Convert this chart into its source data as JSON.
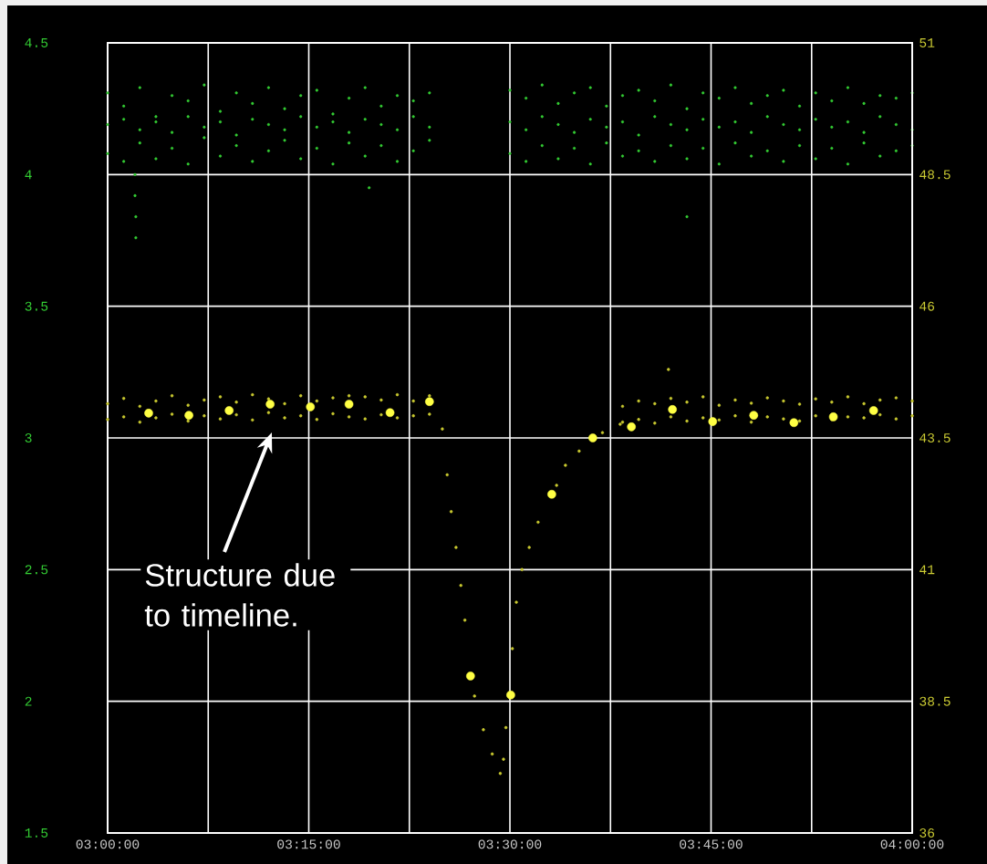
{
  "chart_data": {
    "type": "scatter",
    "grid": true,
    "xlim": [
      3,
      4
    ],
    "xticks": [
      {
        "value": 3,
        "label": "03:00:00"
      },
      {
        "value": 3.125,
        "label": null
      },
      {
        "value": 3.25,
        "label": "03:15:00"
      },
      {
        "value": 3.375,
        "label": null
      },
      {
        "value": 3.5,
        "label": "03:30:00"
      },
      {
        "value": 3.625,
        "label": null
      },
      {
        "value": 3.75,
        "label": "03:45:00"
      },
      {
        "value": 3.875,
        "label": null
      },
      {
        "value": 4,
        "label": "04:00:00"
      }
    ],
    "ylim": [
      1.5,
      4.5
    ],
    "yticks": [
      1.5,
      2,
      2.5,
      3,
      3.5,
      4,
      4.5
    ],
    "y2lim": [
      36,
      51
    ],
    "y2ticks": [
      36,
      38.5,
      41,
      43.5,
      46,
      48.5,
      51
    ],
    "annotations": [
      "Structure due to timeline."
    ],
    "series": [
      {
        "color": "#33cc33",
        "x": [
          3.0,
          3.0,
          3.0,
          3.02,
          3.02,
          3.02,
          3.04,
          3.04,
          3.04,
          3.06,
          3.06,
          3.06,
          3.08,
          3.08,
          3.08,
          3.1,
          3.1,
          3.1,
          3.12,
          3.12,
          3.12,
          3.14,
          3.14,
          3.14,
          3.16,
          3.16,
          3.16,
          3.18,
          3.18,
          3.18,
          3.2,
          3.2,
          3.2,
          3.22,
          3.22,
          3.22,
          3.24,
          3.24,
          3.24,
          3.26,
          3.26,
          3.26,
          3.28,
          3.28,
          3.28,
          3.3,
          3.3,
          3.3,
          3.32,
          3.32,
          3.32,
          3.34,
          3.34,
          3.34,
          3.36,
          3.36,
          3.36,
          3.38,
          3.38,
          3.38,
          3.4,
          3.4,
          3.4,
          3.5,
          3.5,
          3.5,
          3.52,
          3.52,
          3.52,
          3.54,
          3.54,
          3.54,
          3.56,
          3.56,
          3.56,
          3.58,
          3.58,
          3.58,
          3.6,
          3.6,
          3.6,
          3.62,
          3.62,
          3.62,
          3.64,
          3.64,
          3.64,
          3.66,
          3.66,
          3.66,
          3.68,
          3.68,
          3.68,
          3.7,
          3.7,
          3.7,
          3.72,
          3.72,
          3.72,
          3.74,
          3.74,
          3.74,
          3.76,
          3.76,
          3.76,
          3.78,
          3.78,
          3.78,
          3.8,
          3.8,
          3.8,
          3.82,
          3.82,
          3.82,
          3.84,
          3.84,
          3.84,
          3.86,
          3.86,
          3.86,
          3.88,
          3.88,
          3.88,
          3.9,
          3.9,
          3.9,
          3.92,
          3.92,
          3.92,
          3.94,
          3.94,
          3.94,
          3.96,
          3.96,
          3.96,
          3.98,
          3.98,
          3.98,
          4.0,
          4.0,
          4.0,
          3.034,
          3.034,
          3.035,
          3.035,
          3.325,
          3.72
        ],
        "values": [
          4.31,
          4.19,
          4.08,
          4.26,
          4.21,
          4.05,
          4.33,
          4.17,
          4.12,
          4.22,
          4.2,
          4.06,
          4.3,
          4.16,
          4.1,
          4.28,
          4.22,
          4.04,
          4.34,
          4.18,
          4.14,
          4.24,
          4.2,
          4.07,
          4.31,
          4.15,
          4.11,
          4.27,
          4.21,
          4.05,
          4.33,
          4.19,
          4.09,
          4.25,
          4.17,
          4.13,
          4.3,
          4.22,
          4.06,
          4.32,
          4.18,
          4.1,
          4.23,
          4.2,
          4.04,
          4.29,
          4.16,
          4.12,
          4.33,
          4.21,
          4.07,
          4.26,
          4.19,
          4.11,
          4.3,
          4.17,
          4.05,
          4.28,
          4.22,
          4.09,
          4.31,
          4.18,
          4.13,
          4.32,
          4.2,
          4.08,
          4.29,
          4.17,
          4.05,
          4.34,
          4.22,
          4.11,
          4.27,
          4.19,
          4.06,
          4.31,
          4.16,
          4.1,
          4.33,
          4.21,
          4.04,
          4.26,
          4.18,
          4.12,
          4.3,
          4.2,
          4.07,
          4.32,
          4.15,
          4.09,
          4.28,
          4.22,
          4.05,
          4.34,
          4.19,
          4.11,
          4.25,
          4.17,
          4.06,
          4.31,
          4.21,
          4.1,
          4.29,
          4.18,
          4.04,
          4.33,
          4.2,
          4.12,
          4.27,
          4.16,
          4.07,
          4.3,
          4.22,
          4.09,
          4.32,
          4.19,
          4.05,
          4.26,
          4.17,
          4.11,
          4.31,
          4.21,
          4.06,
          4.28,
          4.18,
          4.1,
          4.33,
          4.2,
          4.04,
          4.27,
          4.16,
          4.12,
          4.3,
          4.22,
          4.07,
          4.29,
          4.19,
          4.09,
          4.31,
          4.17,
          4.11,
          4.0,
          3.92,
          3.84,
          3.76,
          3.95,
          3.84
        ]
      },
      {
        "color": "#c8c830",
        "axis": "y2",
        "x": [
          3.0,
          3.0,
          3.02,
          3.02,
          3.04,
          3.04,
          3.06,
          3.06,
          3.08,
          3.08,
          3.1,
          3.1,
          3.12,
          3.12,
          3.14,
          3.14,
          3.16,
          3.16,
          3.18,
          3.18,
          3.2,
          3.2,
          3.22,
          3.22,
          3.24,
          3.24,
          3.26,
          3.26,
          3.28,
          3.28,
          3.3,
          3.3,
          3.32,
          3.32,
          3.34,
          3.34,
          3.36,
          3.36,
          3.38,
          3.38,
          3.4,
          3.4,
          3.416,
          3.422,
          3.427,
          3.433,
          3.439,
          3.444,
          3.456,
          3.467,
          3.478,
          3.488,
          3.492,
          3.495,
          3.503,
          3.508,
          3.515,
          3.524,
          3.535,
          3.558,
          3.569,
          3.586,
          3.615,
          3.637,
          3.64,
          3.64,
          3.66,
          3.66,
          3.68,
          3.68,
          3.697,
          3.7,
          3.7,
          3.72,
          3.72,
          3.74,
          3.74,
          3.76,
          3.76,
          3.78,
          3.78,
          3.8,
          3.8,
          3.82,
          3.82,
          3.84,
          3.84,
          3.86,
          3.86,
          3.88,
          3.88,
          3.9,
          3.9,
          3.92,
          3.92,
          3.94,
          3.94,
          3.96,
          3.96,
          3.98,
          3.98,
          4.0,
          4.0
        ],
        "values": [
          44.15,
          43.85,
          44.25,
          43.9,
          44.1,
          43.8,
          44.2,
          43.88,
          44.3,
          43.95,
          44.12,
          43.82,
          44.22,
          43.92,
          44.28,
          43.86,
          44.18,
          43.94,
          44.32,
          43.84,
          44.24,
          43.98,
          44.15,
          43.88,
          44.3,
          43.92,
          44.2,
          43.85,
          44.26,
          43.96,
          44.3,
          43.9,
          44.28,
          43.86,
          44.22,
          43.94,
          44.32,
          43.88,
          44.2,
          43.92,
          44.3,
          43.95,
          43.67,
          42.8,
          42.1,
          41.42,
          40.7,
          40.04,
          38.6,
          37.96,
          37.5,
          37.13,
          37.4,
          38.0,
          39.5,
          40.38,
          41.0,
          41.42,
          41.9,
          42.6,
          42.98,
          43.25,
          43.6,
          43.76,
          44.1,
          43.8,
          44.2,
          43.85,
          44.15,
          43.78,
          44.8,
          44.25,
          43.9,
          44.18,
          43.82,
          44.28,
          43.88,
          44.12,
          43.84,
          44.22,
          43.92,
          44.16,
          43.8,
          44.26,
          43.9,
          44.2,
          43.86,
          44.14,
          43.82,
          44.24,
          43.92,
          44.18,
          43.85,
          44.28,
          43.9,
          44.15,
          43.88,
          44.22,
          43.94,
          44.26,
          43.86,
          44.2,
          43.92
        ]
      },
      {
        "color": "#ffff44",
        "axis": "y2",
        "x": [
          3.051,
          3.101,
          3.151,
          3.202,
          3.252,
          3.3,
          3.351,
          3.4,
          3.451,
          3.501,
          3.552,
          3.603,
          3.651,
          3.702,
          3.752,
          3.803,
          3.853,
          3.902,
          3.952
        ],
        "values": [
          43.97,
          43.93,
          44.02,
          44.14,
          44.09,
          44.14,
          43.98,
          44.19,
          38.98,
          38.62,
          42.43,
          43.5,
          43.71,
          44.04,
          43.81,
          43.93,
          43.79,
          43.9,
          44.02
        ]
      }
    ]
  }
}
